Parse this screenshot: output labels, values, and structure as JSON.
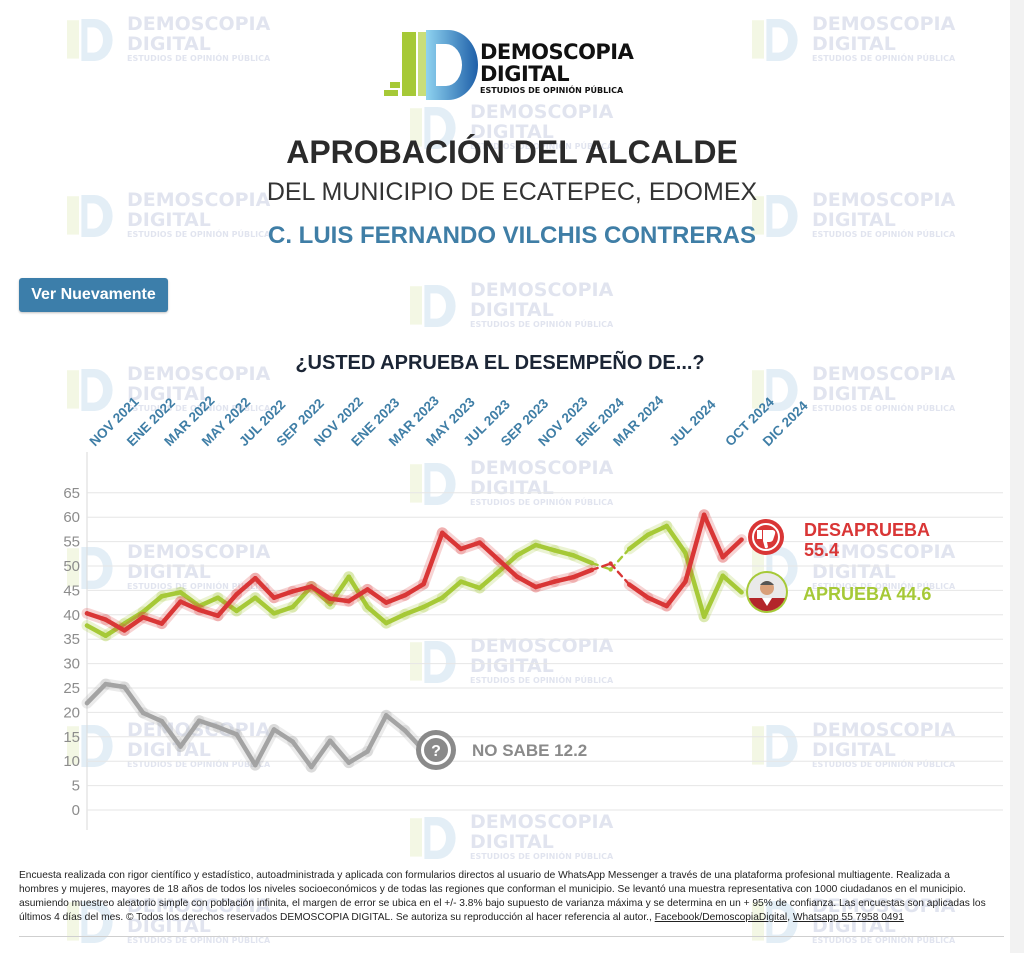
{
  "brand": {
    "line1": "DEMOSCOPIA",
    "line2": "DIGITAL",
    "tagline": "ESTUDIOS DE OPINIÓN PÚBLICA",
    "colors": {
      "green": "#a6c937",
      "blue": "#2e7fc2",
      "dark": "#1e3a8a"
    }
  },
  "header": {
    "title": "APROBACIÓN DEL ALCALDE",
    "subtitle": "DEL MUNICIPIO DE ECATEPEC, EDOMEX",
    "official": "C. LUIS FERNANDO VILCHIS CONTRERAS"
  },
  "controls": {
    "replay_label": "Ver Nuevamente"
  },
  "question": "¿USTED APRUEBA EL DESEMPEÑO DE...?",
  "chart_data": {
    "type": "line",
    "title": "¿USTED APRUEBA EL DESEMPEÑO DE...?",
    "ylim": [
      0,
      65
    ],
    "yticks": [
      0,
      5,
      10,
      15,
      20,
      25,
      30,
      35,
      40,
      45,
      50,
      55,
      60,
      65
    ],
    "grid": true,
    "x_labels": [
      "NOV 2021",
      "ENE 2022",
      "MAR 2022",
      "MAY 2022",
      "JUL 2022",
      "SEP 2022",
      "NOV 2022",
      "ENE 2023",
      "MAR 2023",
      "MAY 2023",
      "JUL 2023",
      "SEP 2023",
      "NOV 2023",
      "ENE 2024",
      "MAR 2024",
      "JUL 2024",
      "OCT 2024",
      "DIC 2024"
    ],
    "x_label_index": [
      0,
      2,
      4,
      6,
      8,
      10,
      12,
      14,
      16,
      18,
      20,
      22,
      24,
      26,
      28,
      31,
      34,
      36
    ],
    "series": [
      {
        "name": "DESAPRUEBA",
        "color": "#d93636",
        "end_value": "55.4",
        "points": [
          [
            0,
            40.3
          ],
          [
            1,
            39
          ],
          [
            2,
            36.8
          ],
          [
            3,
            39.5
          ],
          [
            4,
            38.2
          ],
          [
            5,
            42.7
          ],
          [
            6,
            41
          ],
          [
            7,
            39.8
          ],
          [
            8,
            44.2
          ],
          [
            9,
            47.5
          ],
          [
            10,
            43.5
          ],
          [
            11,
            44.8
          ],
          [
            12,
            45.8
          ],
          [
            13,
            43.3
          ],
          [
            14,
            42.8
          ],
          [
            15,
            45.2
          ],
          [
            16,
            42.5
          ],
          [
            17,
            44
          ],
          [
            18,
            46.3
          ],
          [
            19,
            56.8
          ],
          [
            20,
            53.5
          ],
          [
            21,
            54.8
          ],
          [
            22,
            51.3
          ],
          [
            23,
            47.8
          ],
          [
            24,
            45.7
          ],
          [
            25,
            46.8
          ],
          [
            26,
            47.7
          ],
          [
            27,
            49.2
          ],
          [
            28,
            50.5
          ],
          [
            29,
            46.2
          ],
          [
            30,
            43.5
          ],
          [
            31,
            41.8
          ],
          [
            32,
            46.8
          ],
          [
            33,
            60.5
          ],
          [
            34,
            51.8
          ],
          [
            35,
            55.4
          ]
        ],
        "dashed_segments": [
          [
            27,
            28
          ],
          [
            28,
            29
          ]
        ]
      },
      {
        "name": "APRUEBA",
        "color": "#a6c937",
        "end_value": "44.6",
        "points": [
          [
            0,
            37.8
          ],
          [
            1,
            35.7
          ],
          [
            2,
            38.2
          ],
          [
            3,
            40.6
          ],
          [
            4,
            43.8
          ],
          [
            5,
            44.6
          ],
          [
            6,
            41.8
          ],
          [
            7,
            43.5
          ],
          [
            8,
            40.8
          ],
          [
            9,
            43.5
          ],
          [
            10,
            40.3
          ],
          [
            11,
            41.6
          ],
          [
            12,
            45.8
          ],
          [
            13,
            42.2
          ],
          [
            14,
            47.8
          ],
          [
            15,
            41.6
          ],
          [
            16,
            38.3
          ],
          [
            17,
            40.1
          ],
          [
            18,
            41.6
          ],
          [
            19,
            43.5
          ],
          [
            20,
            46.8
          ],
          [
            21,
            45.5
          ],
          [
            22,
            48.8
          ],
          [
            23,
            52.2
          ],
          [
            24,
            54.3
          ],
          [
            25,
            53.2
          ],
          [
            26,
            52.2
          ],
          [
            27,
            50.6
          ],
          [
            28,
            49.3
          ],
          [
            29,
            53.5
          ],
          [
            30,
            56.4
          ],
          [
            31,
            58.2
          ],
          [
            32,
            52.7
          ],
          [
            33,
            39.6
          ],
          [
            34,
            48
          ],
          [
            35,
            44.6
          ]
        ],
        "dashed_segments": [
          [
            27,
            28
          ],
          [
            28,
            29
          ]
        ]
      },
      {
        "name": "NO SABE",
        "color": "#a3a3a3",
        "end_value": "12.2",
        "points": [
          [
            0,
            21.9
          ],
          [
            1,
            25.8
          ],
          [
            2,
            25.2
          ],
          [
            3,
            19.9
          ],
          [
            4,
            18.2
          ],
          [
            5,
            13
          ],
          [
            6,
            18.3
          ],
          [
            7,
            17
          ],
          [
            8,
            15.5
          ],
          [
            9,
            9.2
          ],
          [
            10,
            16.5
          ],
          [
            11,
            14
          ],
          [
            12,
            8.8
          ],
          [
            13,
            14.2
          ],
          [
            14,
            9.7
          ],
          [
            15,
            12
          ],
          [
            16,
            19.4
          ],
          [
            17,
            16.3
          ],
          [
            18,
            12.2
          ]
        ],
        "dashed_segments": []
      }
    ]
  },
  "callouts": {
    "desaprueba_label": "DESAPRUEBA",
    "desaprueba_value": "55.4",
    "aprueba_label": "APRUEBA 44.6",
    "nosabe_label": "NO SABE 12.2",
    "question_glyph": "?",
    "icons": [
      "thumbs-down-icon",
      "person-avatar",
      "question-icon"
    ]
  },
  "footer": {
    "text": "Encuesta realizada con rigor científico y estadístico, autoadministrada y aplicada con formularios directos al usuario de WhatsApp Messenger a través de una plataforma profesional multiagente. Realizada a hombres y mujeres, mayores de 18 años de todos los niveles socioeconómicos y de todas las regiones que conforman el municipio. Se levantó una muestra representativa con 1000 ciudadanos en el municipio. asumiendo muestreo aleatorio simple con población infinita, el margen de error se ubica en el +/- 3.8% bajo supuesto de varianza máxima y se determina en un + 95% de confianza. Las encuestas son aplicadas los últimos 4 días del mes. © Todos los derechos reservados DEMOSCOPIA DIGITAL. Se autoriza su reproducción al hacer referencia al autor.,",
    "link_facebook": "Facebook/DemoscopiaDigital",
    "link_whatsapp": "Whatsapp 55 7958 0491"
  }
}
